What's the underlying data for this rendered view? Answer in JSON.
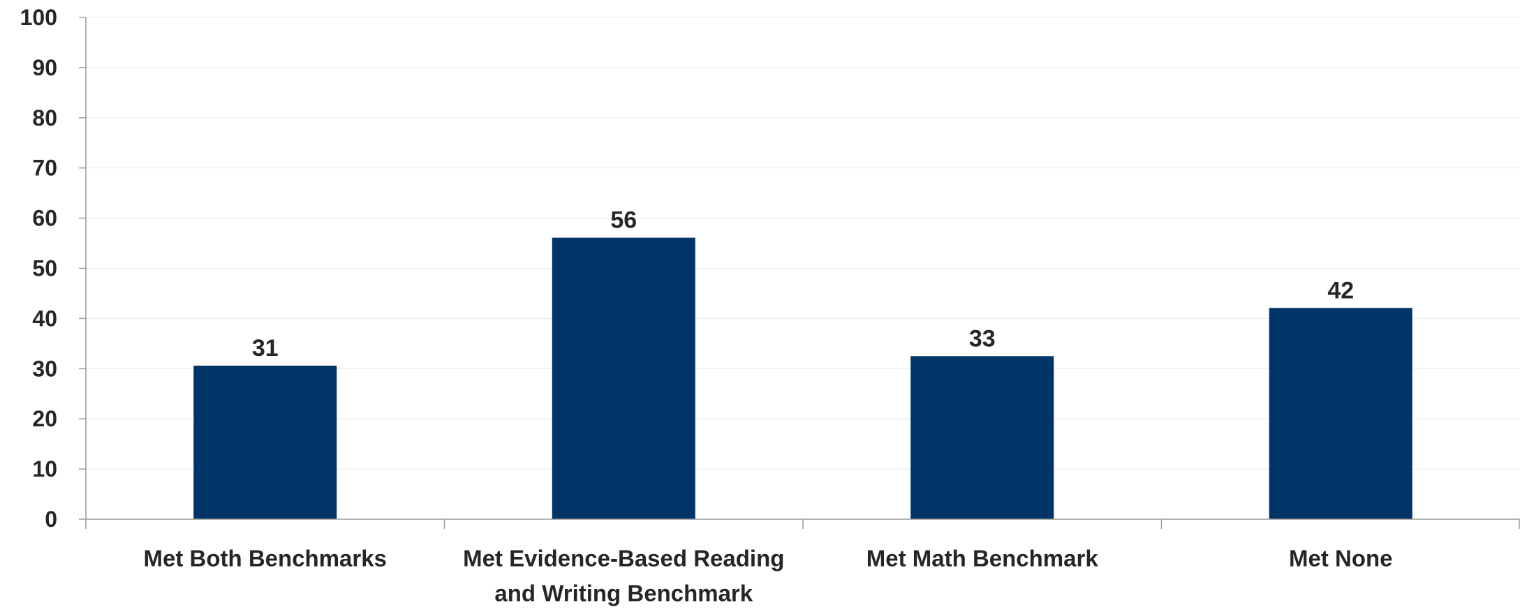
{
  "chart_data": {
    "type": "bar",
    "title": "",
    "xlabel": "",
    "ylabel": "",
    "ylim": [
      0,
      100
    ],
    "yticks": [
      0,
      10,
      20,
      30,
      40,
      50,
      60,
      70,
      80,
      90,
      100
    ],
    "grid": true,
    "categories": [
      "Met Both Benchmarks",
      "Met Evidence-Based Reading and Writing Benchmark",
      "Met Math Benchmark",
      "Met None"
    ],
    "category_lines": [
      [
        "Met Both Benchmarks"
      ],
      [
        "Met Evidence-Based Reading",
        "and Writing Benchmark"
      ],
      [
        "Met Math Benchmark"
      ],
      [
        "Met None"
      ]
    ],
    "values": [
      30.6,
      56.1,
      32.5,
      42.1
    ],
    "data_labels": [
      "31",
      "56",
      "33",
      "42"
    ],
    "colors": {
      "bar": "#003366",
      "axis": "#9a9a9a",
      "grid": "#ececec",
      "text": "#262626"
    }
  }
}
